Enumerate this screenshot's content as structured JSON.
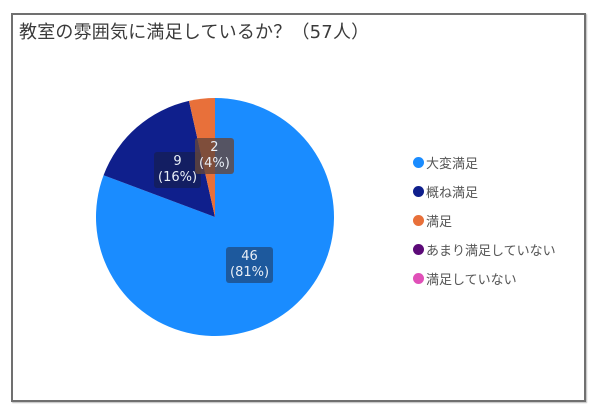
{
  "chart_data": {
    "type": "pie",
    "title": "教室の雰囲気に満足しているか？（57人）",
    "total": 57,
    "categories": [
      "大変満足",
      "概ね満足",
      "満足",
      "あまり満足していない",
      "満足していない"
    ],
    "values": [
      46,
      9,
      2,
      0,
      0
    ],
    "percentages": [
      81,
      16,
      4,
      0,
      0
    ],
    "colors": [
      "#1a8cff",
      "#0f1f8c",
      "#e8703a",
      "#5c0a78",
      "#e050b8"
    ],
    "data_labels": [
      {
        "value": "46",
        "pct": "(81%)"
      },
      {
        "value": "9",
        "pct": "(16%)"
      },
      {
        "value": "2",
        "pct": "(4%)"
      }
    ],
    "legend_position": "right",
    "start_angle": "12 o'clock, clockwise"
  },
  "title": "教室の雰囲気に満足しているか？（57人）",
  "legend": [
    {
      "label": "大変満足",
      "color": "#1a8cff"
    },
    {
      "label": "概ね満足",
      "color": "#0f1f8c"
    },
    {
      "label": "満足",
      "color": "#e8703a"
    },
    {
      "label": "あまり満足していない",
      "color": "#5c0a78"
    },
    {
      "label": "満足していない",
      "color": "#e050b8"
    }
  ]
}
